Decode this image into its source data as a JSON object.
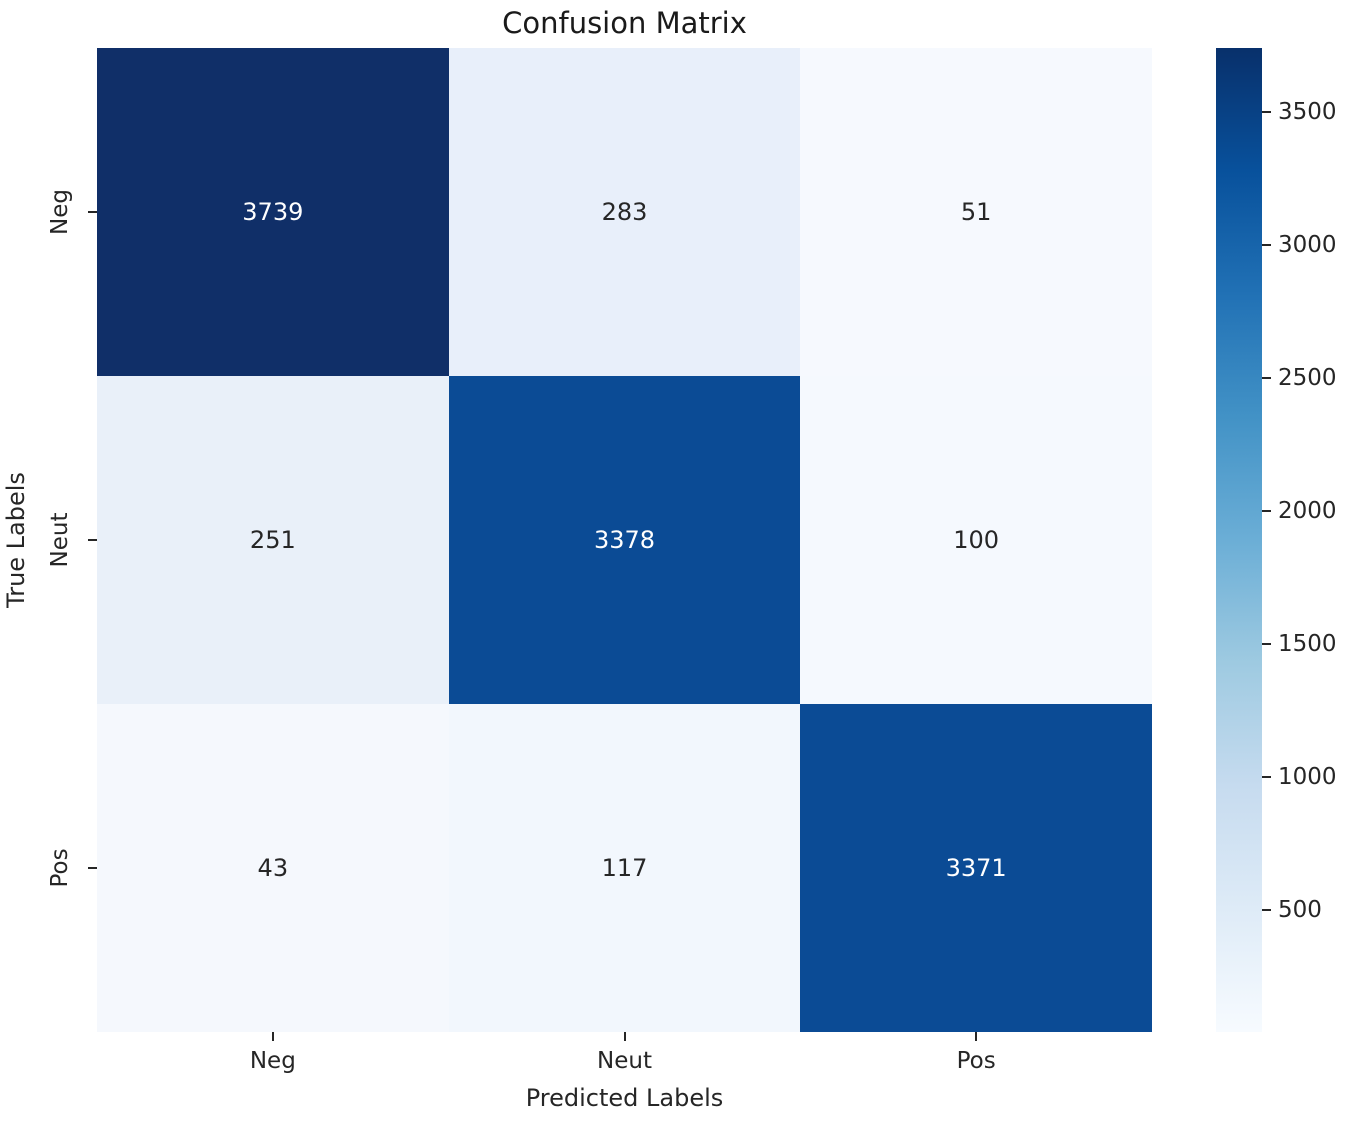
{
  "figure": {
    "background": "#ffffff",
    "text_color": "#262626",
    "title_color": "#1a1a1a"
  },
  "chart_data": {
    "type": "heatmap",
    "title": "Confusion Matrix",
    "xlabel": "Predicted Labels",
    "ylabel": "True Labels",
    "x_tick_labels": [
      "Neg",
      "Neut",
      "Pos"
    ],
    "y_tick_labels": [
      "Neg",
      "Neut",
      "Pos"
    ],
    "matrix": [
      [
        3739,
        283,
        51
      ],
      [
        251,
        3378,
        100
      ],
      [
        43,
        117,
        3371
      ]
    ],
    "cell_colors": [
      [
        "#102f68",
        "#e8effa",
        "#f6f9fe"
      ],
      [
        "#e9f0f9",
        "#0b4b95",
        "#f5f9fe"
      ],
      [
        "#f5f8fd",
        "#f2f7fd",
        "#0b4b95"
      ]
    ],
    "annot_color_light": "#ffffff",
    "annot_color_dark": "#262626",
    "colormap": "Blues",
    "colormap_stops": [
      "#f7fbff",
      "#deebf7",
      "#c6dbef",
      "#9ecae1",
      "#6baed6",
      "#4292c6",
      "#2171b5",
      "#08519c",
      "#08306b"
    ],
    "vmin": 43,
    "vmax": 3739,
    "colorbar_ticks": [
      500,
      1000,
      1500,
      2000,
      2500,
      3000,
      3500
    ],
    "legend_position": "right-colorbar",
    "grid": false
  }
}
